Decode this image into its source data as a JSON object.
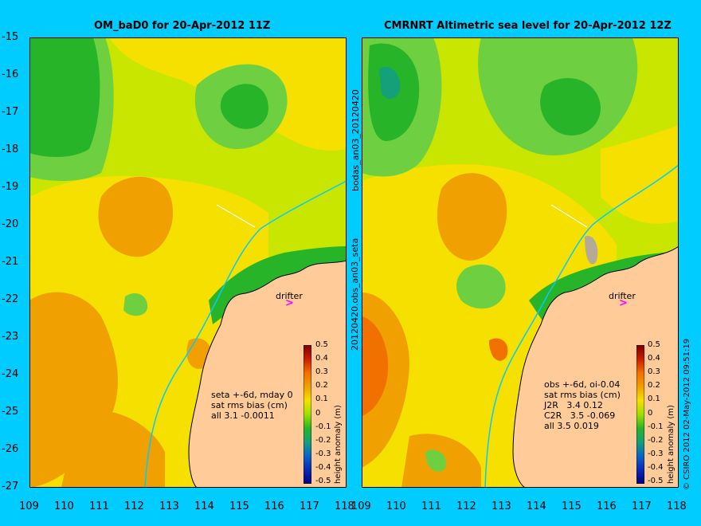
{
  "left_panel": {
    "title": "OM_baD0 for 20-Apr-2012 11Z",
    "side_label": "bodas_an03_20120420",
    "drifter_label": "drifter",
    "stats": "seta +-6d, mday 0\nsat rms bias (cm)\nall 3.1 -0.0011"
  },
  "right_panel": {
    "title": "CMRNRT Altimetric sea level  for 20-Apr-2012 12Z",
    "side_label": "20120420.obs_an03_seta",
    "drifter_label": "drifter",
    "stats": "obs +-6d, oi-0.04\nsat rms bias (cm)\nJ2R   3.4 0.12\nC2R   3.5 -0.069\nall 3.5 0.019"
  },
  "axes": {
    "lat_ticks": [
      "-15",
      "-16",
      "-17",
      "-18",
      "-19",
      "-20",
      "-21",
      "-22",
      "-23",
      "-24",
      "-25",
      "-26",
      "-27"
    ],
    "lon_ticks": [
      "109",
      "110",
      "111",
      "112",
      "113",
      "114",
      "115",
      "116",
      "117",
      "118"
    ]
  },
  "colorbar": {
    "label": "height anomaly (m)",
    "ticks": [
      "0.5",
      "0.4",
      "0.3",
      "0.2",
      "0.1",
      "0",
      "-0.1",
      "-0.2",
      "-0.3",
      "-0.4",
      "-0.5"
    ],
    "colors": [
      "#7a0000",
      "#c81e00",
      "#f07000",
      "#f0a000",
      "#f5e000",
      "#9ee000",
      "#28b428",
      "#14a078",
      "#0a64c8",
      "#0a28b4",
      "#000080"
    ]
  },
  "credit": "© CSIRO 2012  02-May-2012 09:51:19",
  "colors": {
    "background": "#00ccff",
    "land": "#ffcc99",
    "ocean_base": "#c8e600",
    "warm": "#f5e000",
    "orange": "#f0a000",
    "green": "#28b428",
    "cyan": "#00ccff"
  }
}
